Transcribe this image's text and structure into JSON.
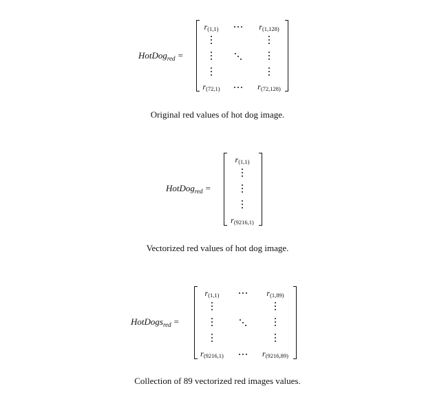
{
  "equations": [
    {
      "name": "HotDog",
      "subscript": "red",
      "equals": "=",
      "r_symbol": "r",
      "top_left": "(1,1)",
      "top_right": "(1,128)",
      "bottom_left": "(72,1)",
      "bottom_right": "(72,128)",
      "caption": "Original red values of hot dog image."
    },
    {
      "name": "HotDog",
      "subscript": "red",
      "equals": "=",
      "r_symbol": "r",
      "top": "(1,1)",
      "bottom": "(9216,1)",
      "caption": "Vectorized red values of hot dog image."
    },
    {
      "name": "HotDogs",
      "subscript": "red",
      "equals": "=",
      "r_symbol": "r",
      "top_left": "(1,1)",
      "top_right": "(1,89)",
      "bottom_left": "(9216,1)",
      "bottom_right": "(9216,89)",
      "caption": "Collection of 89 vectorized red images values."
    }
  ]
}
